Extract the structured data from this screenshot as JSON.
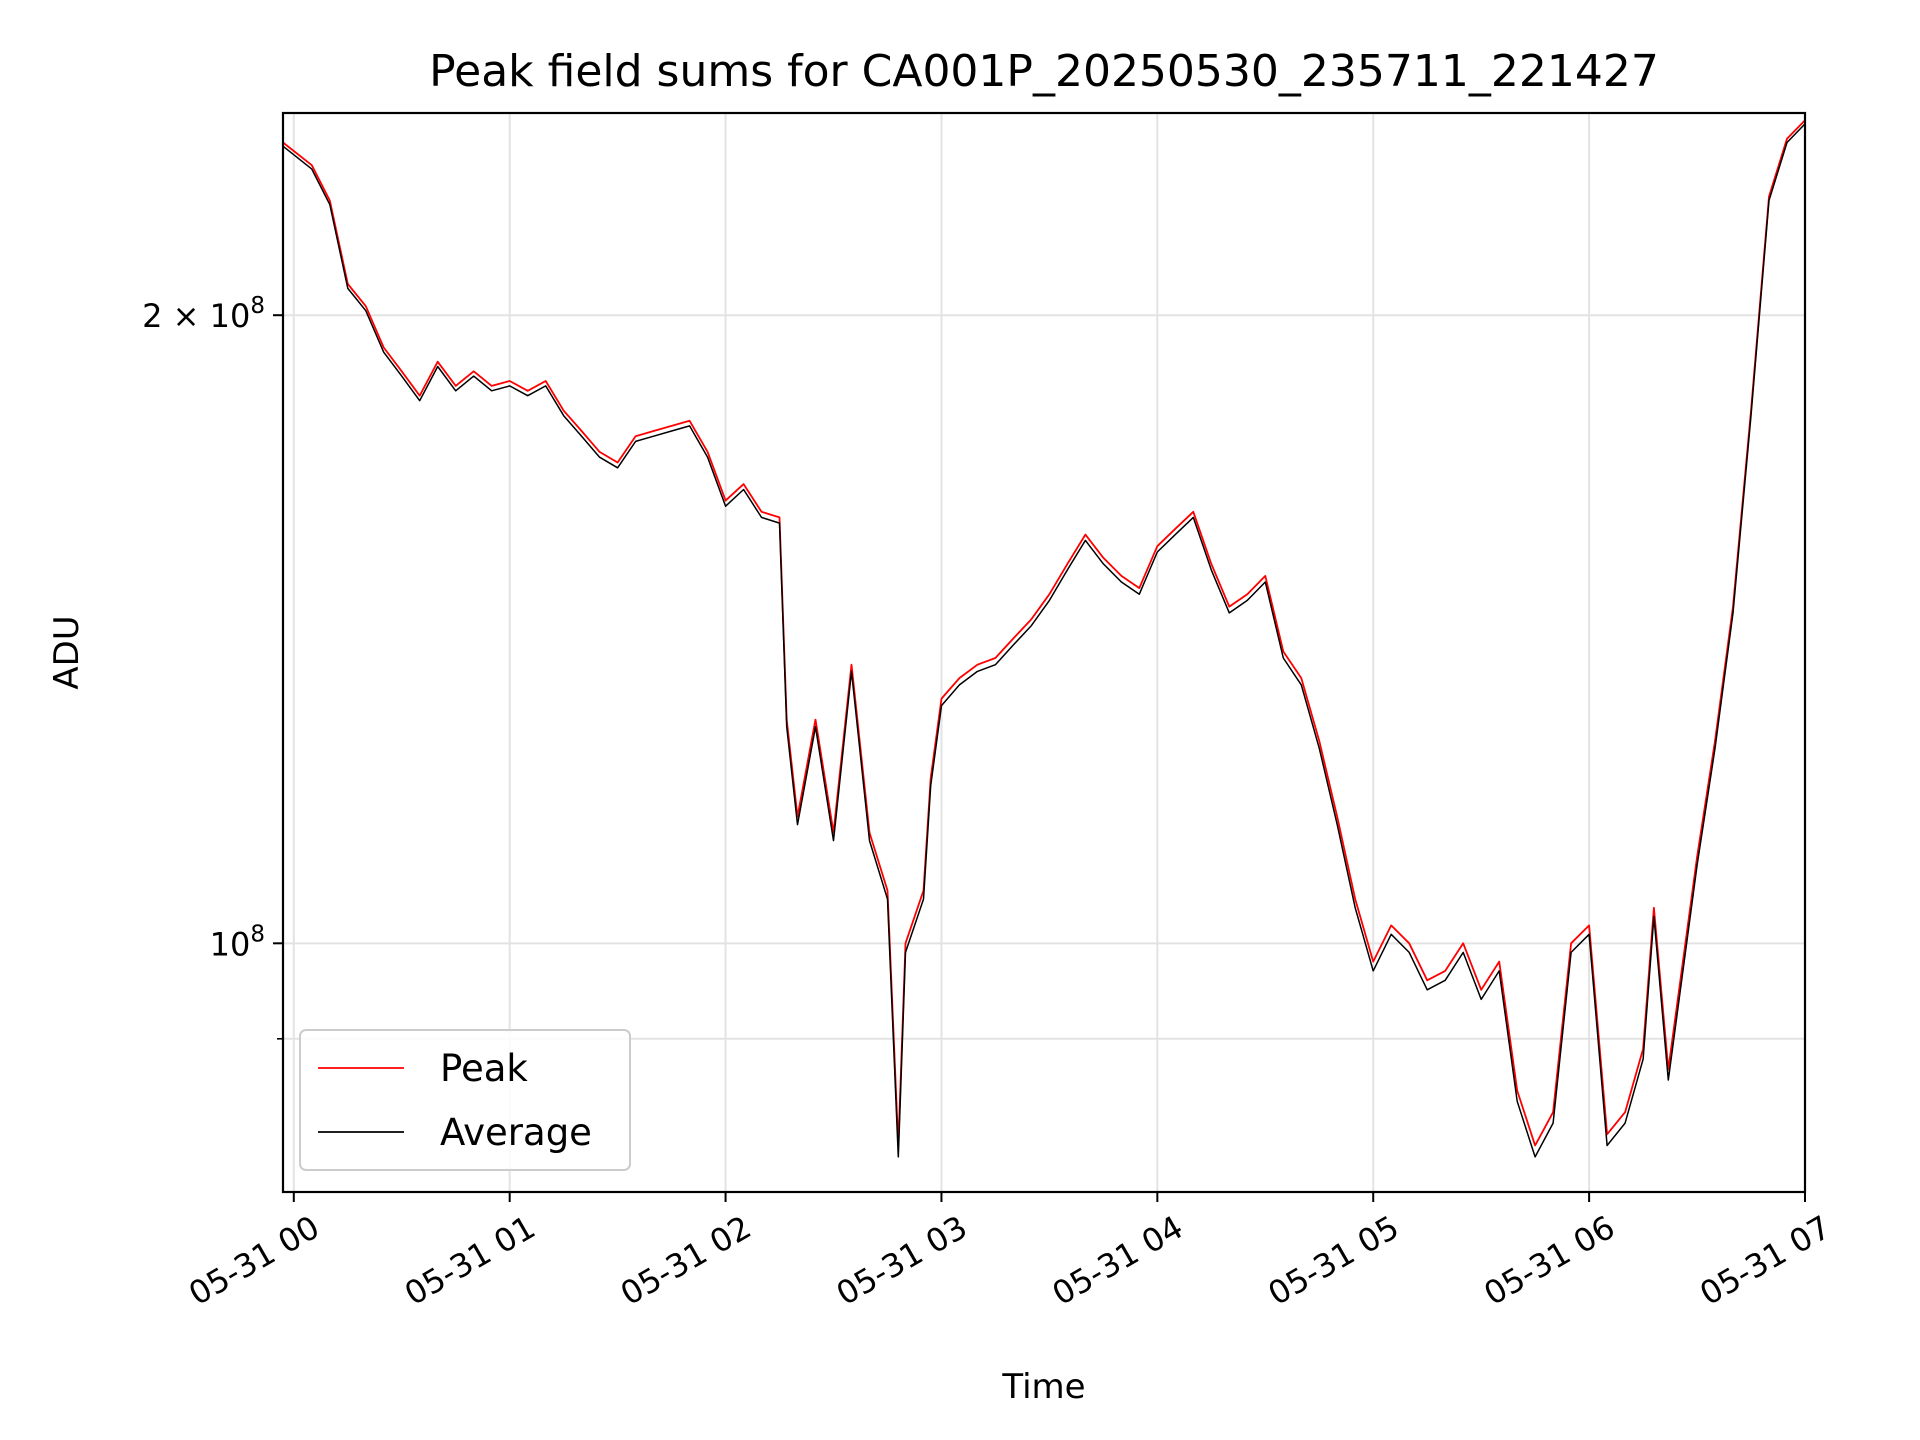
{
  "chart_data": {
    "type": "line",
    "title": "Peak field sums for CA001P_20250530_235711_221427",
    "xlabel": "Time",
    "ylabel": "ADU",
    "x_axis": {
      "kind": "time",
      "range": [
        "2025-05-30T23:57:00",
        "2025-05-31T07:00:00"
      ],
      "ticks": [
        {
          "value": "2025-05-31T00:00",
          "label": "05-31 00"
        },
        {
          "value": "2025-05-31T01:00",
          "label": "05-31 01"
        },
        {
          "value": "2025-05-31T02:00",
          "label": "05-31 02"
        },
        {
          "value": "2025-05-31T03:00",
          "label": "05-31 03"
        },
        {
          "value": "2025-05-31T04:00",
          "label": "05-31 04"
        },
        {
          "value": "2025-05-31T05:00",
          "label": "05-31 05"
        },
        {
          "value": "2025-05-31T06:00",
          "label": "05-31 06"
        },
        {
          "value": "2025-05-31T07:00",
          "label": "05-31 07"
        }
      ]
    },
    "y_axis": {
      "scale": "log",
      "range": [
        76000000,
        250000000
      ],
      "major_ticks": [
        {
          "value": 100000000,
          "label_base": "10",
          "label_exp": "8",
          "label_coeff": ""
        },
        {
          "value": 200000000,
          "label_base": "10",
          "label_exp": "8",
          "label_coeff": "2 × "
        }
      ],
      "minor_ticks": [
        90000000
      ]
    },
    "grid": true,
    "legend": {
      "position": "lower-left",
      "entries": [
        "Peak",
        "Average"
      ]
    },
    "series": [
      {
        "name": "Peak",
        "color": "#ff0000",
        "points": [
          [
            "2025-05-30T23:57",
            242000000
          ],
          [
            "2025-05-31T00:05",
            236000000
          ],
          [
            "2025-05-31T00:10",
            227000000
          ],
          [
            "2025-05-31T00:15",
            207000000
          ],
          [
            "2025-05-31T00:20",
            202000000
          ],
          [
            "2025-05-31T00:25",
            193000000
          ],
          [
            "2025-05-31T00:30",
            188000000
          ],
          [
            "2025-05-31T00:35",
            183000000
          ],
          [
            "2025-05-31T00:40",
            190000000
          ],
          [
            "2025-05-31T00:45",
            185000000
          ],
          [
            "2025-05-31T00:50",
            188000000
          ],
          [
            "2025-05-31T00:55",
            185000000
          ],
          [
            "2025-05-31T01:00",
            186000000
          ],
          [
            "2025-05-31T01:05",
            184000000
          ],
          [
            "2025-05-31T01:10",
            186000000
          ],
          [
            "2025-05-31T01:15",
            180000000
          ],
          [
            "2025-05-31T01:20",
            176000000
          ],
          [
            "2025-05-31T01:25",
            172000000
          ],
          [
            "2025-05-31T01:30",
            170000000
          ],
          [
            "2025-05-31T01:35",
            175000000
          ],
          [
            "2025-05-31T01:40",
            176000000
          ],
          [
            "2025-05-31T01:45",
            177000000
          ],
          [
            "2025-05-31T01:50",
            178000000
          ],
          [
            "2025-05-31T01:55",
            172000000
          ],
          [
            "2025-05-31T02:00",
            163000000
          ],
          [
            "2025-05-31T02:05",
            166000000
          ],
          [
            "2025-05-31T02:10",
            161000000
          ],
          [
            "2025-05-31T02:15",
            160000000
          ],
          [
            "2025-05-31T02:17",
            128000000
          ],
          [
            "2025-05-31T02:20",
            115000000
          ],
          [
            "2025-05-31T02:25",
            128000000
          ],
          [
            "2025-05-31T02:30",
            113000000
          ],
          [
            "2025-05-31T02:35",
            136000000
          ],
          [
            "2025-05-31T02:40",
            113000000
          ],
          [
            "2025-05-31T02:45",
            106000000
          ],
          [
            "2025-05-31T02:48",
            80000000
          ],
          [
            "2025-05-31T02:50",
            100000000
          ],
          [
            "2025-05-31T02:55",
            106000000
          ],
          [
            "2025-05-31T02:57",
            120000000
          ],
          [
            "2025-05-31T03:00",
            131000000
          ],
          [
            "2025-05-31T03:05",
            134000000
          ],
          [
            "2025-05-31T03:10",
            136000000
          ],
          [
            "2025-05-31T03:15",
            137000000
          ],
          [
            "2025-05-31T03:20",
            140000000
          ],
          [
            "2025-05-31T03:25",
            143000000
          ],
          [
            "2025-05-31T03:30",
            147000000
          ],
          [
            "2025-05-31T03:35",
            152000000
          ],
          [
            "2025-05-31T03:40",
            157000000
          ],
          [
            "2025-05-31T03:45",
            153000000
          ],
          [
            "2025-05-31T03:50",
            150000000
          ],
          [
            "2025-05-31T03:55",
            148000000
          ],
          [
            "2025-05-31T04:00",
            155000000
          ],
          [
            "2025-05-31T04:05",
            158000000
          ],
          [
            "2025-05-31T04:10",
            161000000
          ],
          [
            "2025-05-31T04:15",
            152000000
          ],
          [
            "2025-05-31T04:20",
            145000000
          ],
          [
            "2025-05-31T04:25",
            147000000
          ],
          [
            "2025-05-31T04:30",
            150000000
          ],
          [
            "2025-05-31T04:35",
            138000000
          ],
          [
            "2025-05-31T04:40",
            134000000
          ],
          [
            "2025-05-31T04:45",
            125000000
          ],
          [
            "2025-05-31T04:50",
            115000000
          ],
          [
            "2025-05-31T04:55",
            105000000
          ],
          [
            "2025-05-31T05:00",
            98000000
          ],
          [
            "2025-05-31T05:05",
            102000000
          ],
          [
            "2025-05-31T05:10",
            100000000
          ],
          [
            "2025-05-31T05:15",
            96000000
          ],
          [
            "2025-05-31T05:20",
            97000000
          ],
          [
            "2025-05-31T05:25",
            100000000
          ],
          [
            "2025-05-31T05:30",
            95000000
          ],
          [
            "2025-05-31T05:35",
            98000000
          ],
          [
            "2025-05-31T05:40",
            85000000
          ],
          [
            "2025-05-31T05:45",
            80000000
          ],
          [
            "2025-05-31T05:50",
            83000000
          ],
          [
            "2025-05-31T05:55",
            100000000
          ],
          [
            "2025-05-31T06:00",
            102000000
          ],
          [
            "2025-05-31T06:05",
            81000000
          ],
          [
            "2025-05-31T06:10",
            83000000
          ],
          [
            "2025-05-31T06:15",
            89000000
          ],
          [
            "2025-05-31T06:18",
            104000000
          ],
          [
            "2025-05-31T06:22",
            87000000
          ],
          [
            "2025-05-31T06:25",
            95000000
          ],
          [
            "2025-05-31T06:30",
            110000000
          ],
          [
            "2025-05-31T06:35",
            125000000
          ],
          [
            "2025-05-31T06:40",
            145000000
          ],
          [
            "2025-05-31T06:45",
            180000000
          ],
          [
            "2025-05-31T06:50",
            228000000
          ],
          [
            "2025-05-31T06:55",
            243000000
          ],
          [
            "2025-05-31T07:00",
            248000000
          ]
        ]
      },
      {
        "name": "Average",
        "color": "#000000",
        "points": [
          [
            "2025-05-30T23:57",
            241000000
          ],
          [
            "2025-05-31T00:05",
            235000000
          ],
          [
            "2025-05-31T00:10",
            226000000
          ],
          [
            "2025-05-31T00:15",
            206000000
          ],
          [
            "2025-05-31T00:20",
            201000000
          ],
          [
            "2025-05-31T00:25",
            192000000
          ],
          [
            "2025-05-31T00:30",
            187000000
          ],
          [
            "2025-05-31T00:35",
            182000000
          ],
          [
            "2025-05-31T00:40",
            189000000
          ],
          [
            "2025-05-31T00:45",
            184000000
          ],
          [
            "2025-05-31T00:50",
            187000000
          ],
          [
            "2025-05-31T00:55",
            184000000
          ],
          [
            "2025-05-31T01:00",
            185000000
          ],
          [
            "2025-05-31T01:05",
            183000000
          ],
          [
            "2025-05-31T01:10",
            185000000
          ],
          [
            "2025-05-31T01:15",
            179000000
          ],
          [
            "2025-05-31T01:20",
            175000000
          ],
          [
            "2025-05-31T01:25",
            171000000
          ],
          [
            "2025-05-31T01:30",
            169000000
          ],
          [
            "2025-05-31T01:35",
            174000000
          ],
          [
            "2025-05-31T01:40",
            175000000
          ],
          [
            "2025-05-31T01:45",
            176000000
          ],
          [
            "2025-05-31T01:50",
            177000000
          ],
          [
            "2025-05-31T01:55",
            171000000
          ],
          [
            "2025-05-31T02:00",
            162000000
          ],
          [
            "2025-05-31T02:05",
            165000000
          ],
          [
            "2025-05-31T02:10",
            160000000
          ],
          [
            "2025-05-31T02:15",
            159000000
          ],
          [
            "2025-05-31T02:17",
            127000000
          ],
          [
            "2025-05-31T02:20",
            114000000
          ],
          [
            "2025-05-31T02:25",
            127000000
          ],
          [
            "2025-05-31T02:30",
            112000000
          ],
          [
            "2025-05-31T02:35",
            135000000
          ],
          [
            "2025-05-31T02:40",
            112000000
          ],
          [
            "2025-05-31T02:45",
            105000000
          ],
          [
            "2025-05-31T02:48",
            79000000
          ],
          [
            "2025-05-31T02:50",
            99000000
          ],
          [
            "2025-05-31T02:55",
            105000000
          ],
          [
            "2025-05-31T02:57",
            119000000
          ],
          [
            "2025-05-31T03:00",
            130000000
          ],
          [
            "2025-05-31T03:05",
            133000000
          ],
          [
            "2025-05-31T03:10",
            135000000
          ],
          [
            "2025-05-31T03:15",
            136000000
          ],
          [
            "2025-05-31T03:20",
            139000000
          ],
          [
            "2025-05-31T03:25",
            142000000
          ],
          [
            "2025-05-31T03:30",
            146000000
          ],
          [
            "2025-05-31T03:35",
            151000000
          ],
          [
            "2025-05-31T03:40",
            156000000
          ],
          [
            "2025-05-31T03:45",
            152000000
          ],
          [
            "2025-05-31T03:50",
            149000000
          ],
          [
            "2025-05-31T03:55",
            147000000
          ],
          [
            "2025-05-31T04:00",
            154000000
          ],
          [
            "2025-05-31T04:05",
            157000000
          ],
          [
            "2025-05-31T04:10",
            160000000
          ],
          [
            "2025-05-31T04:15",
            151000000
          ],
          [
            "2025-05-31T04:20",
            144000000
          ],
          [
            "2025-05-31T04:25",
            146000000
          ],
          [
            "2025-05-31T04:30",
            149000000
          ],
          [
            "2025-05-31T04:35",
            137000000
          ],
          [
            "2025-05-31T04:40",
            133000000
          ],
          [
            "2025-05-31T04:45",
            124000000
          ],
          [
            "2025-05-31T04:50",
            114000000
          ],
          [
            "2025-05-31T04:55",
            104000000
          ],
          [
            "2025-05-31T05:00",
            97000000
          ],
          [
            "2025-05-31T05:05",
            101000000
          ],
          [
            "2025-05-31T05:10",
            99000000
          ],
          [
            "2025-05-31T05:15",
            95000000
          ],
          [
            "2025-05-31T05:20",
            96000000
          ],
          [
            "2025-05-31T05:25",
            99000000
          ],
          [
            "2025-05-31T05:30",
            94000000
          ],
          [
            "2025-05-31T05:35",
            97000000
          ],
          [
            "2025-05-31T05:40",
            84000000
          ],
          [
            "2025-05-31T05:45",
            79000000
          ],
          [
            "2025-05-31T05:50",
            82000000
          ],
          [
            "2025-05-31T05:55",
            99000000
          ],
          [
            "2025-05-31T06:00",
            101000000
          ],
          [
            "2025-05-31T06:05",
            80000000
          ],
          [
            "2025-05-31T06:10",
            82000000
          ],
          [
            "2025-05-31T06:15",
            88000000
          ],
          [
            "2025-05-31T06:18",
            103000000
          ],
          [
            "2025-05-31T06:22",
            86000000
          ],
          [
            "2025-05-31T06:25",
            94000000
          ],
          [
            "2025-05-31T06:30",
            109000000
          ],
          [
            "2025-05-31T06:35",
            124000000
          ],
          [
            "2025-05-31T06:40",
            144000000
          ],
          [
            "2025-05-31T06:45",
            179000000
          ],
          [
            "2025-05-31T06:50",
            227000000
          ],
          [
            "2025-05-31T06:55",
            242000000
          ],
          [
            "2025-05-31T07:00",
            247000000
          ]
        ]
      }
    ]
  }
}
